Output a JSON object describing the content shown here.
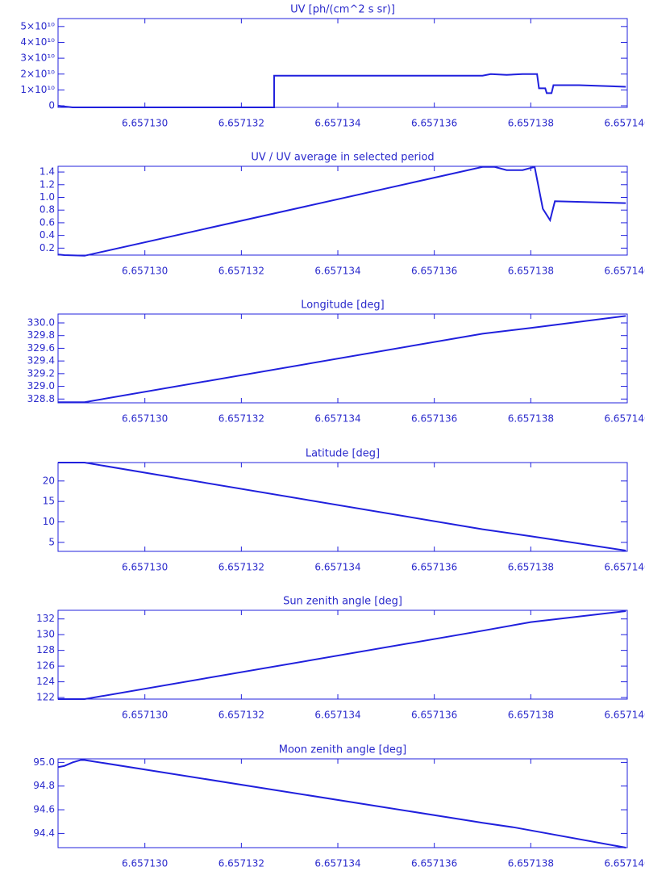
{
  "chart_data": [
    {
      "type": "line",
      "title": "UV [ph/(cm^2 s sr)]",
      "color": "#2020dd",
      "x": [
        6.6571282,
        6.6571285,
        6.65713268,
        6.65713268,
        6.657137,
        6.65713717,
        6.6571375,
        6.65713783,
        6.65713813,
        6.65713817,
        6.6571383,
        6.65713833,
        6.65713843,
        6.65713847,
        6.657139,
        6.65713997
      ],
      "values": [
        0,
        -1000000000,
        -1000000000,
        19000000000,
        19000000000,
        20000000000,
        19500000000,
        20000000000,
        20000000000,
        11000000000,
        11000000000,
        8000000000,
        8000000000,
        13000000000,
        13000000000,
        12000000000
      ],
      "xlim": [
        6.6571282,
        6.65714
      ],
      "ylim": [
        -1000000000,
        55000000000
      ],
      "xticks": [
        {
          "value": 6.65713,
          "label": "6.657130"
        },
        6.657132,
        6.657134,
        6.657136,
        6.657138,
        {
          "value": 6.65714,
          "label": "6.657140"
        }
      ],
      "yticks": [
        0,
        {
          "value": 10000000000,
          "label": "1×10¹⁰"
        },
        {
          "value": 20000000000,
          "label": "2×10¹⁰"
        },
        {
          "value": 30000000000,
          "label": "3×10¹⁰"
        },
        {
          "value": 40000000000,
          "label": "4×10¹⁰"
        },
        {
          "value": 50000000000,
          "label": "5×10¹⁰"
        }
      ]
    },
    {
      "type": "line",
      "title": "UV / UV average in selected period",
      "color": "#2020dd",
      "x": [
        6.6571282,
        6.65712833,
        6.65712875,
        6.657137,
        6.65713725,
        6.6571375,
        6.65713783,
        6.65713808,
        6.65713825,
        6.6571384,
        6.6571385,
        6.65713997
      ],
      "values": [
        0.1,
        0.09,
        0.08,
        1.48,
        1.48,
        1.43,
        1.43,
        1.48,
        0.82,
        0.64,
        0.94,
        0.91
      ],
      "xlim": [
        6.6571282,
        6.65714
      ],
      "ylim": [
        0.09,
        1.49
      ],
      "xticks": [
        {
          "value": 6.65713,
          "label": "6.657130"
        },
        6.657132,
        6.657134,
        6.657136,
        6.657138,
        {
          "value": 6.65714,
          "label": "6.657140"
        }
      ],
      "yticks": [
        0.2,
        0.4,
        0.6,
        0.8,
        {
          "value": 1,
          "label": "1.0"
        },
        1.2,
        1.4
      ]
    },
    {
      "type": "line",
      "title": "Longitude [deg]",
      "color": "#2020dd",
      "x": [
        6.6571282,
        6.65712875,
        6.657137,
        6.657138,
        6.65713997
      ],
      "values": [
        328.75,
        328.75,
        329.83,
        329.92,
        330.11
      ],
      "xlim": [
        6.6571282,
        6.65714
      ],
      "ylim": [
        328.74,
        330.14
      ],
      "xticks": [
        {
          "value": 6.65713,
          "label": "6.657130"
        },
        6.657132,
        6.657134,
        6.657136,
        6.657138,
        {
          "value": 6.65714,
          "label": "6.657140"
        }
      ],
      "yticks": [
        328.8,
        {
          "value": 329,
          "label": "329.0"
        },
        329.2,
        329.4,
        329.6,
        329.8,
        {
          "value": 330,
          "label": "330.0"
        }
      ]
    },
    {
      "type": "line",
      "title": "Latitude [deg]",
      "color": "#2020dd",
      "x": [
        6.6571282,
        6.65712875,
        6.657137,
        6.657138,
        6.65713997
      ],
      "values": [
        24.5,
        24.5,
        8.2,
        6.5,
        3
      ],
      "xlim": [
        6.6571282,
        6.65714
      ],
      "ylim": [
        2.8,
        24.5
      ],
      "xticks": [
        {
          "value": 6.65713,
          "label": "6.657130"
        },
        6.657132,
        6.657134,
        6.657136,
        6.657138,
        {
          "value": 6.65714,
          "label": "6.657140"
        }
      ],
      "yticks": [
        5,
        10,
        15,
        20
      ]
    },
    {
      "type": "line",
      "title": "Sun zenith angle [deg]",
      "color": "#2020dd",
      "x": [
        6.6571282,
        6.65712875,
        6.657137,
        6.657138,
        6.65713997
      ],
      "values": [
        121.8,
        121.8,
        130.5,
        131.6,
        133
      ],
      "xlim": [
        6.6571282,
        6.65714
      ],
      "ylim": [
        121.8,
        133.1
      ],
      "xticks": [
        {
          "value": 6.65713,
          "label": "6.657130"
        },
        6.657132,
        6.657134,
        6.657136,
        6.657138,
        {
          "value": 6.65714,
          "label": "6.657140"
        }
      ],
      "yticks": [
        122,
        124,
        126,
        128,
        130,
        132
      ]
    },
    {
      "type": "line",
      "title": "Moon zenith angle [deg]",
      "color": "#2020dd",
      "x": [
        6.6571282,
        6.65712833,
        6.6571285,
        6.65712867,
        6.65712875,
        6.657137,
        6.65713767,
        6.65713997
      ],
      "values": [
        94.96,
        94.97,
        95,
        95.02,
        95.02,
        94.49,
        94.45,
        94.28
      ],
      "xlim": [
        6.6571282,
        6.65714
      ],
      "ylim": [
        94.28,
        95.03
      ],
      "xticks": [
        {
          "value": 6.65713,
          "label": "6.657130"
        },
        6.657132,
        6.657134,
        6.657136,
        6.657138,
        {
          "value": 6.65714,
          "label": "6.657140"
        }
      ],
      "yticks": [
        94.4,
        94.6,
        94.8,
        {
          "value": 95,
          "label": "95.0"
        }
      ]
    }
  ]
}
